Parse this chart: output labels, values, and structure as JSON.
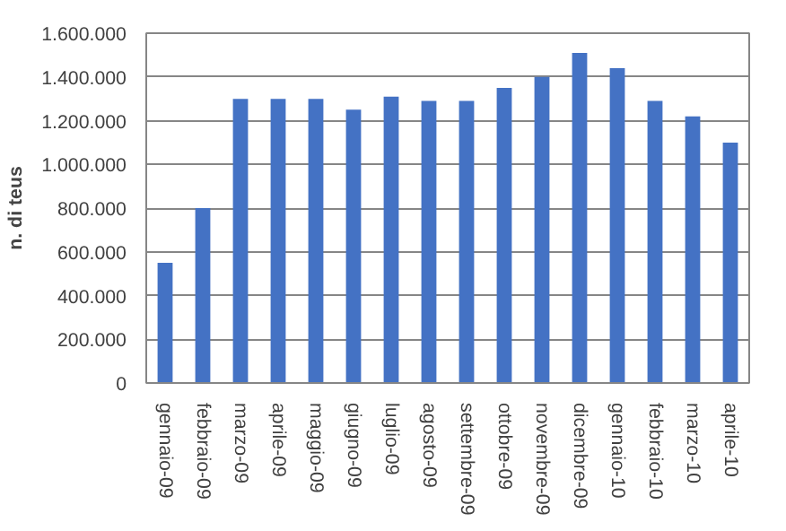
{
  "chart_data": {
    "type": "bar",
    "ylabel": "n. di teus",
    "categories": [
      "gennaio-09",
      "febbraio-09",
      "marzo-09",
      "aprile-09",
      "maggio-09",
      "giugno-09",
      "luglio-09",
      "agosto-09",
      "settembre-09",
      "ottobre-09",
      "novembre-09",
      "dicembre-09",
      "gennaio-10",
      "febbraio-10",
      "marzo-10",
      "aprile-10"
    ],
    "values": [
      550000,
      800000,
      1300000,
      1300000,
      1300000,
      1250000,
      1310000,
      1290000,
      1290000,
      1350000,
      1400000,
      1510000,
      1440000,
      1290000,
      1220000,
      1100000
    ],
    "color": "#4472c4",
    "ylim": [
      0,
      1600000
    ],
    "yticks": [
      0,
      {
        "value": 200000,
        "label": "200.000"
      },
      {
        "value": 400000,
        "label": "400.000"
      },
      {
        "value": 600000,
        "label": "600.000"
      },
      {
        "value": 800000,
        "label": "800.000"
      },
      {
        "value": 1000000,
        "label": "1.000.000"
      },
      {
        "value": 1200000,
        "label": "1.200.000"
      },
      {
        "value": 1400000,
        "label": "1.400.000"
      },
      {
        "value": 1600000,
        "label": "1.600.000"
      }
    ],
    "grid": "y"
  }
}
